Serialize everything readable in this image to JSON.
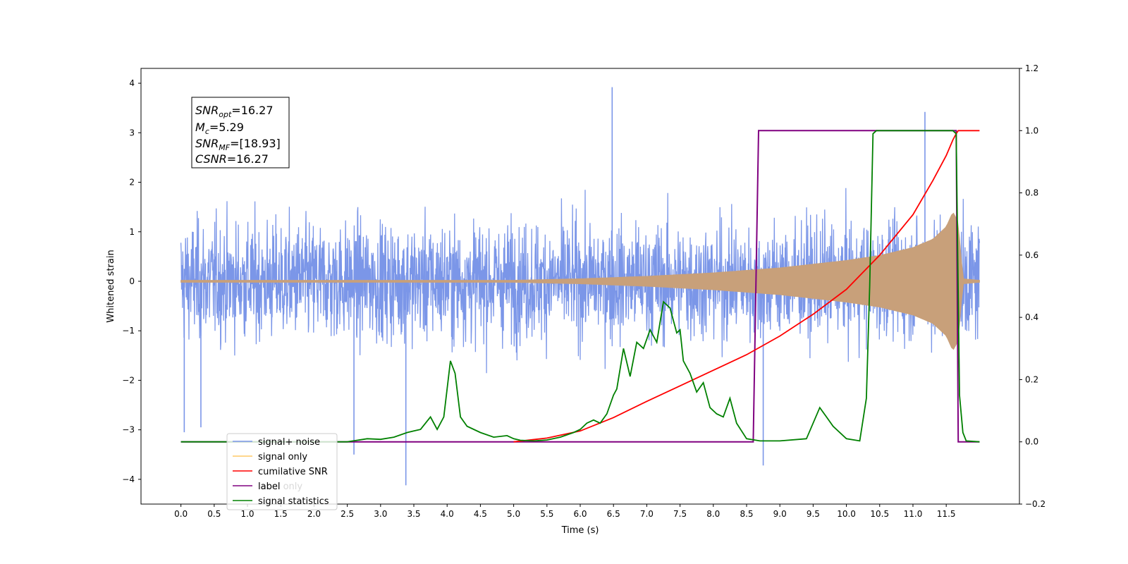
{
  "chart_data": {
    "type": "line",
    "xlabel": "Time (s)",
    "ylabel_left": "Whitened strain",
    "ylabel_right": "",
    "xlim": [
      -0.6,
      12.6
    ],
    "ylim_left": [
      -4.5,
      4.3
    ],
    "ylim_right": [
      -0.2,
      1.2
    ],
    "x_ticks": [
      "0.0",
      "0.5",
      "1.0",
      "1.5",
      "2.0",
      "2.5",
      "3.0",
      "3.5",
      "4.0",
      "4.5",
      "5.0",
      "5.5",
      "6.0",
      "6.5",
      "7.0",
      "7.5",
      "8.0",
      "8.5",
      "9.0",
      "9.5",
      "10.0",
      "10.5",
      "11.0",
      "11.5"
    ],
    "y_left_ticks": [
      "4",
      "3",
      "2",
      "1",
      "0",
      "−1",
      "−2",
      "−3",
      "−4"
    ],
    "y_right_ticks": [
      "1.2",
      "1.0",
      "0.8",
      "0.6",
      "0.4",
      "0.2",
      "0.0",
      "−0.2"
    ],
    "grid": false,
    "legend_position": "lower-left",
    "annotation": {
      "lines": [
        {
          "sym": "SNR",
          "sub": "opt",
          "value": "=16.27"
        },
        {
          "sym": "M",
          "sub": "c",
          "value": "=5.29"
        },
        {
          "sym": "SNR",
          "sub": "MF",
          "value": "=[18.93]"
        },
        {
          "sym": "CSNR",
          "sub": "",
          "value": "=16.27"
        }
      ]
    },
    "series": [
      {
        "name": "signal+ noise",
        "color": "#7b96e8",
        "axis": "left",
        "style": "noise",
        "x_range": [
          0.0,
          12.0
        ],
        "envelope_typical": [
          -1.6,
          1.8
        ],
        "notable_peaks": [
          [
            6.48,
            3.92
          ],
          [
            11.18,
            3.42
          ],
          [
            3.38,
            -4.12
          ],
          [
            8.75,
            -3.72
          ],
          [
            2.6,
            -3.5
          ],
          [
            0.05,
            -3.05
          ],
          [
            0.3,
            -2.95
          ]
        ]
      },
      {
        "name": "signal only",
        "color": "#c8a07a",
        "axis": "left",
        "style": "chirp",
        "x": [
          0.0,
          5.0,
          6.0,
          7.0,
          8.0,
          9.0,
          10.0,
          10.5,
          11.0,
          11.3,
          11.5,
          11.6,
          11.68,
          11.75,
          12.0
        ],
        "amplitude": [
          0.02,
          0.02,
          0.05,
          0.1,
          0.17,
          0.27,
          0.42,
          0.52,
          0.68,
          0.85,
          1.1,
          1.4,
          1.2,
          0.05,
          0.02
        ]
      },
      {
        "name": "cumilative SNR",
        "color": "#ff0000",
        "axis": "right",
        "x": [
          5.0,
          5.5,
          6.0,
          6.5,
          7.0,
          7.5,
          8.0,
          8.5,
          9.0,
          9.5,
          10.0,
          10.5,
          11.0,
          11.3,
          11.5,
          11.6,
          11.65,
          11.68,
          12.0
        ],
        "values": [
          0.0,
          0.012,
          0.035,
          0.078,
          0.13,
          0.18,
          0.23,
          0.28,
          0.34,
          0.41,
          0.49,
          0.6,
          0.73,
          0.84,
          0.92,
          0.97,
          0.99,
          1.0,
          1.0
        ]
      },
      {
        "name": "label",
        "color": "#800080",
        "axis": "right",
        "x": [
          0.0,
          8.6,
          8.68,
          11.65,
          11.68,
          12.0
        ],
        "values": [
          0.0,
          0.0,
          1.0,
          1.0,
          0.0,
          0.0
        ]
      },
      {
        "name": "label only",
        "color": "#e8e8e8",
        "axis": "right",
        "hidden": true,
        "x": [],
        "values": []
      },
      {
        "name": "signal statistics",
        "color": "#008000",
        "axis": "right",
        "x": [
          0.0,
          2.5,
          2.8,
          3.0,
          3.2,
          3.4,
          3.5,
          3.6,
          3.75,
          3.85,
          3.95,
          4.05,
          4.12,
          4.2,
          4.3,
          4.5,
          4.7,
          4.9,
          5.0,
          5.1,
          5.3,
          5.5,
          5.7,
          5.9,
          6.0,
          6.1,
          6.2,
          6.3,
          6.4,
          6.5,
          6.55,
          6.65,
          6.75,
          6.85,
          6.95,
          7.05,
          7.15,
          7.25,
          7.35,
          7.45,
          7.5,
          7.55,
          7.65,
          7.75,
          7.85,
          7.95,
          8.05,
          8.15,
          8.25,
          8.35,
          8.5,
          8.7,
          9.0,
          9.4,
          9.6,
          9.7,
          9.8,
          10.0,
          10.2,
          10.3,
          10.35,
          10.4,
          10.45,
          10.6,
          11.6,
          11.65,
          11.7,
          11.75,
          11.8,
          12.0
        ],
        "values": [
          0.0,
          0.0,
          0.01,
          0.008,
          0.015,
          0.03,
          0.035,
          0.04,
          0.08,
          0.04,
          0.08,
          0.26,
          0.22,
          0.08,
          0.05,
          0.03,
          0.015,
          0.02,
          0.01,
          0.005,
          0.003,
          0.006,
          0.015,
          0.03,
          0.04,
          0.06,
          0.07,
          0.06,
          0.09,
          0.15,
          0.17,
          0.3,
          0.21,
          0.32,
          0.3,
          0.36,
          0.32,
          0.45,
          0.43,
          0.35,
          0.36,
          0.26,
          0.22,
          0.16,
          0.19,
          0.11,
          0.09,
          0.08,
          0.14,
          0.06,
          0.01,
          0.003,
          0.003,
          0.01,
          0.11,
          0.08,
          0.05,
          0.01,
          0.003,
          0.14,
          0.5,
          0.99,
          1.0,
          1.0,
          1.0,
          0.99,
          0.15,
          0.03,
          0.003,
          0.0
        ]
      }
    ]
  }
}
